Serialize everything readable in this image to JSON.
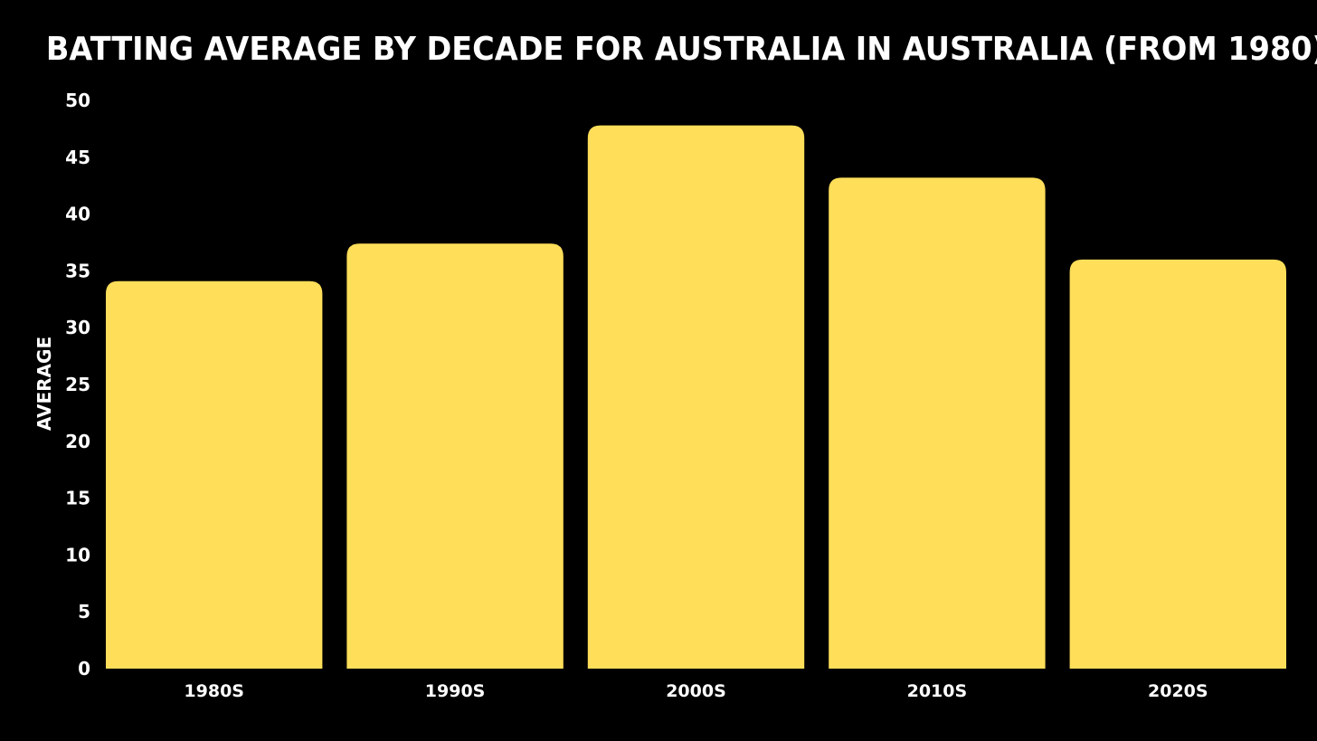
{
  "chart_data": {
    "type": "bar",
    "title": "BATTING AVERAGE BY DECADE FOR AUSTRALIA IN AUSTRALIA (FROM 1980)",
    "xlabel": "",
    "ylabel": "AVERAGE",
    "categories": [
      "1980S",
      "1990S",
      "2000S",
      "2010S",
      "2020S"
    ],
    "values": [
      34.1,
      37.4,
      47.8,
      43.2,
      36.0
    ],
    "ylim": [
      0,
      50
    ],
    "yticks": [
      0,
      5,
      10,
      15,
      20,
      25,
      30,
      35,
      40,
      45,
      50
    ],
    "grid": false,
    "legend": "none",
    "colors": {
      "background": "#000000",
      "bar": "#ffde59",
      "text": "#ffffff"
    }
  }
}
